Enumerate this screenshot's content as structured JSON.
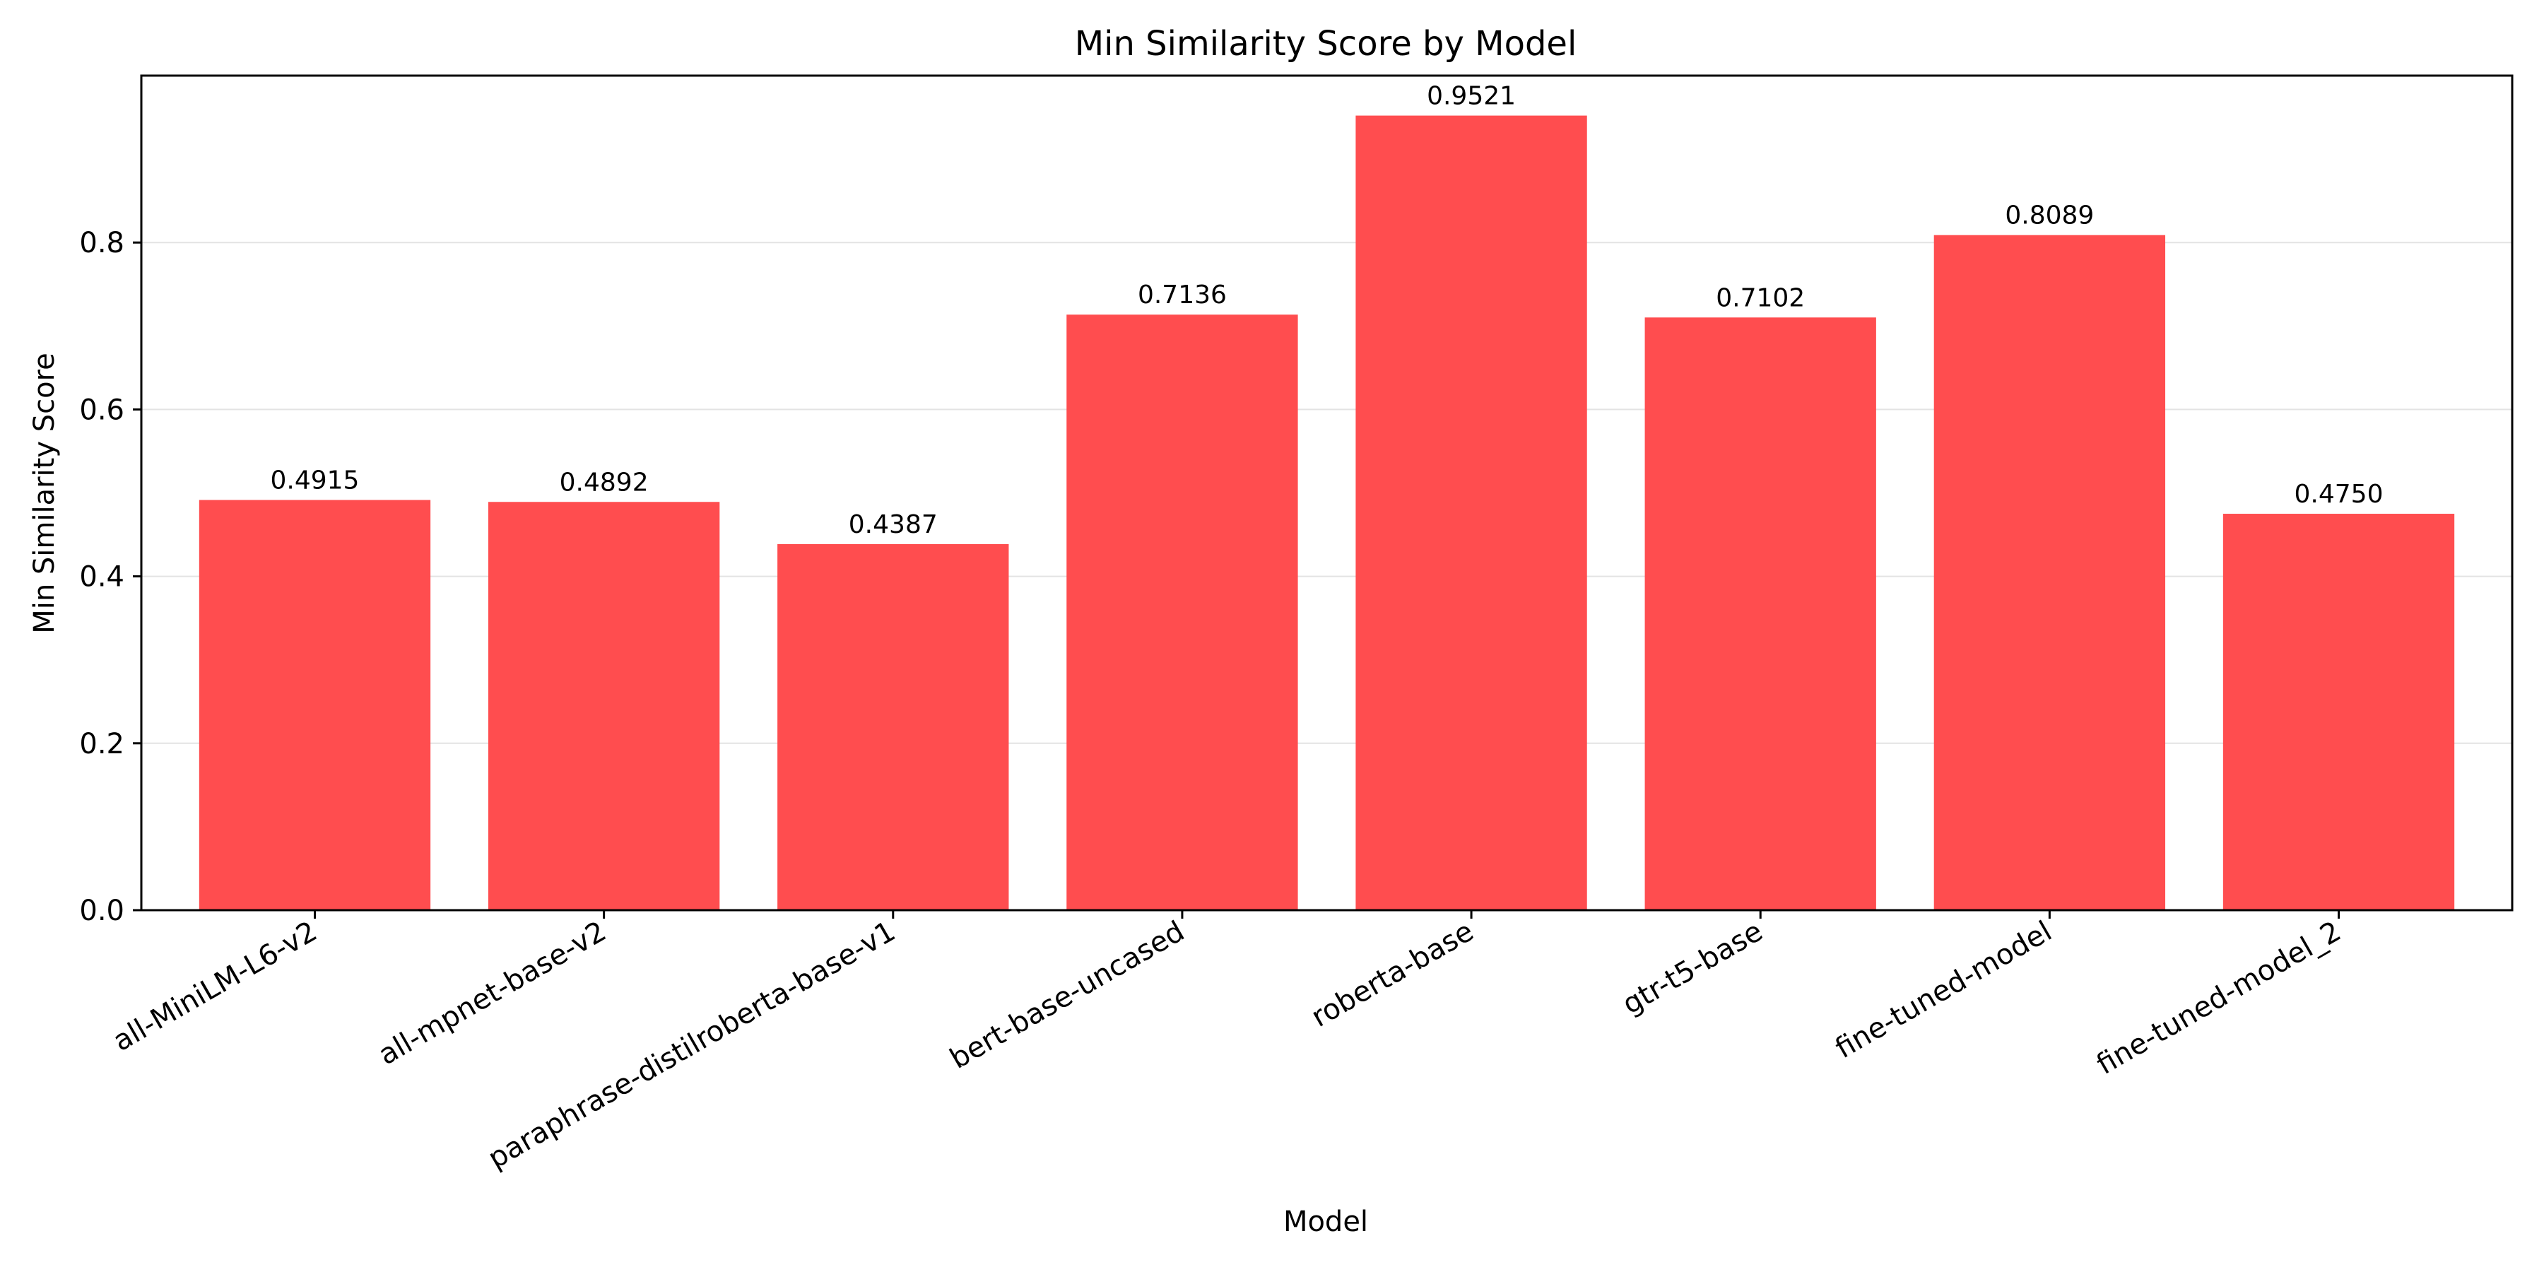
{
  "chart_data": {
    "type": "bar",
    "title": "Min Similarity Score by Model",
    "xlabel": "Model",
    "ylabel": "Min Similarity Score",
    "categories": [
      "all-MiniLM-L6-v2",
      "all-mpnet-base-v2",
      "paraphrase-distilroberta-base-v1",
      "bert-base-uncased",
      "roberta-base",
      "gtr-t5-base",
      "fine-tuned-model",
      "fine-tuned-model_2"
    ],
    "values": [
      0.4915,
      0.4892,
      0.4387,
      0.7136,
      0.9521,
      0.7102,
      0.8089,
      0.475
    ],
    "value_labels": [
      "0.4915",
      "0.4892",
      "0.4387",
      "0.7136",
      "0.9521",
      "0.7102",
      "0.8089",
      "0.4750"
    ],
    "ylim": [
      0,
      1.0
    ],
    "yticks": [
      0.0,
      0.2,
      0.4,
      0.6,
      0.8
    ],
    "ytick_labels": [
      "0.0",
      "0.2",
      "0.4",
      "0.6",
      "0.8"
    ],
    "grid": "horizontal",
    "bar_color": "#ff4d4f",
    "legend": "none"
  }
}
